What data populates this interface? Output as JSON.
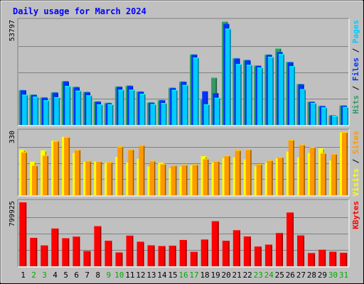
{
  "chart_data": {
    "type": "bar",
    "title": "Daily usage for March 2024",
    "categories": [
      "1",
      "2",
      "3",
      "4",
      "5",
      "6",
      "7",
      "8",
      "9",
      "10",
      "11",
      "12",
      "13",
      "14",
      "15",
      "16",
      "17",
      "18",
      "19",
      "20",
      "21",
      "22",
      "23",
      "24",
      "25",
      "26",
      "27",
      "28",
      "29",
      "30",
      "31"
    ],
    "weekend_days": [
      "2",
      "3",
      "9",
      "10",
      "16",
      "17",
      "23",
      "24",
      "30",
      "31"
    ],
    "panels": [
      {
        "id": "hits",
        "max_label": "53797",
        "ylim": [
          0,
          53797
        ],
        "legend": [
          "Hits",
          "Files",
          "Pages"
        ],
        "series": [
          {
            "name": "Hits",
            "color": "#339966",
            "values": [
              18200,
              15800,
              14400,
              17000,
              22800,
              19800,
              17200,
              12300,
              11500,
              20000,
              20500,
              17500,
              11800,
              13000,
              19400,
              22600,
              36700,
              13300,
              24700,
              53797,
              34700,
              33800,
              30900,
              36600,
              39800,
              32800,
              21300,
              12200,
              10000,
              5100,
              10200
            ]
          },
          {
            "name": "Files",
            "color": "#0033ff",
            "values": [
              18000,
              15600,
              14200,
              16800,
              22600,
              19600,
              17000,
              12100,
              11300,
              19800,
              20300,
              17300,
              11600,
              12800,
              19200,
              22400,
              36500,
              17500,
              16500,
              52500,
              34500,
              33600,
              30700,
              36400,
              37800,
              32600,
              21100,
              12000,
              9800,
              4900,
              10000
            ]
          },
          {
            "name": "Pages",
            "color": "#00ccff",
            "values": [
              15700,
              14700,
              12800,
              14400,
              20200,
              17800,
              15400,
              10700,
              10700,
              18300,
              18300,
              16200,
              10800,
              11400,
              18200,
              20800,
              35000,
              10700,
              14100,
              50000,
              31600,
              31200,
              29800,
              35400,
              36800,
              30500,
              18600,
              11400,
              9100,
              4800,
              9300
            ]
          }
        ]
      },
      {
        "id": "visits",
        "max_label": "330",
        "ylim": [
          0,
          330
        ],
        "legend": [
          "Visits",
          "Sites"
        ],
        "series": [
          {
            "name": "Visits",
            "color": "#ffff00",
            "values": [
              238,
              175,
              234,
              285,
              305,
              220,
              174,
              176,
              170,
              200,
              170,
              190,
              150,
              170,
              140,
              150,
              156,
              204,
              171,
              193,
              198,
              187,
              150,
              170,
              192,
              228,
              197,
              220,
              244,
              181,
              328
            ]
          },
          {
            "name": "Sites",
            "color": "#ff9900",
            "values": [
              226,
              157,
              209,
              284,
              305,
              239,
              180,
              178,
              174,
              255,
              240,
              262,
              180,
              164,
              157,
              160,
              161,
              191,
              179,
              208,
              236,
              240,
              163,
              183,
              200,
              290,
              265,
              252,
              221,
              217,
              330
            ]
          }
        ]
      },
      {
        "id": "kbytes",
        "max_label": "799925",
        "ylim": [
          0,
          799925
        ],
        "legend": [
          "KBytes"
        ],
        "series": [
          {
            "name": "KBytes",
            "color": "#ff0000",
            "values": [
              799925,
              355000,
              260000,
              472000,
              350000,
              370000,
              190000,
              501000,
              319000,
              172000,
              383000,
              307000,
              262000,
              252000,
              257000,
              329000,
              180000,
              334000,
              563000,
              318000,
              450000,
              373000,
              246000,
              270000,
              415000,
              672000,
              385000,
              165000,
              206000,
              181000,
              168000
            ]
          }
        ]
      }
    ]
  }
}
